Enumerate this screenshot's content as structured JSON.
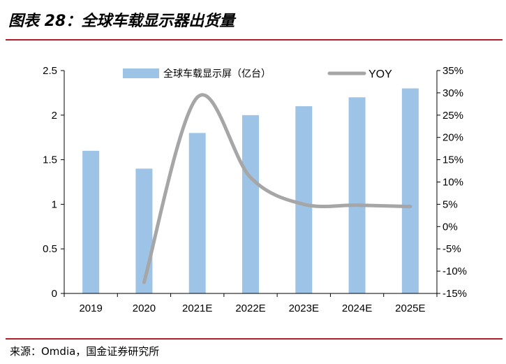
{
  "figure": {
    "title": "图表 28：全球车载显示器出货量",
    "source": "来源：Omdia，国金证券研究所"
  },
  "colors": {
    "bar": "#9dc3e6",
    "line": "#a6a6a6",
    "rule": "#b01e2a"
  },
  "chart_data": {
    "type": "bar",
    "categories": [
      "2019",
      "2020",
      "2021E",
      "2022E",
      "2023E",
      "2024E",
      "2025E"
    ],
    "series": [
      {
        "name": "全球车载显示屏（亿台）",
        "type": "bar",
        "axis": "left",
        "values": [
          1.6,
          1.4,
          1.8,
          2.0,
          2.1,
          2.2,
          2.3
        ]
      },
      {
        "name": "YOY",
        "type": "line",
        "axis": "right",
        "unit": "%",
        "values": [
          null,
          -12.5,
          29.0,
          11.0,
          5.0,
          4.8,
          4.5
        ]
      }
    ],
    "y_left": {
      "min": 0,
      "max": 2.5,
      "step": 0.5,
      "ticks": [
        "0",
        "0.5",
        "1",
        "1.5",
        "2",
        "2.5"
      ]
    },
    "y_right": {
      "min": -15,
      "max": 35,
      "step": 5,
      "ticks": [
        "-15%",
        "-10%",
        "-5%",
        "0%",
        "5%",
        "10%",
        "15%",
        "20%",
        "25%",
        "30%",
        "35%"
      ]
    },
    "legend": {
      "position": "top",
      "items": [
        "全球车载显示屏（亿台）",
        "YOY"
      ]
    },
    "grid": false
  }
}
